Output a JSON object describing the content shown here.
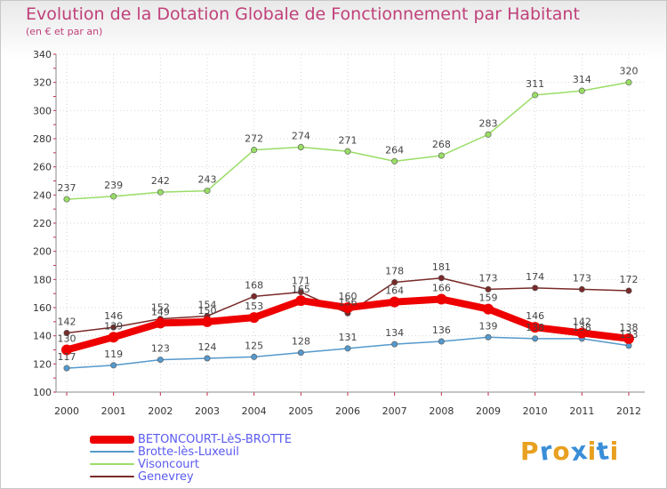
{
  "header": {
    "title": "Evolution de la Dotation Globale de Fonctionnement par Habitant",
    "subtitle": "(en € et par an)"
  },
  "logo": {
    "text": "Proxiti",
    "colors": [
      "#e8a020",
      "#3a8ed8",
      "#e8a020",
      "#3a8ed8",
      "#e8a020",
      "#3a8ed8",
      "#e8a020"
    ]
  },
  "chart_data": {
    "type": "line",
    "x": [
      "2000",
      "2001",
      "2002",
      "2003",
      "2004",
      "2005",
      "2006",
      "2007",
      "2008",
      "2009",
      "2010",
      "2011",
      "2012"
    ],
    "ylim": [
      100,
      340
    ],
    "yticks": [
      100,
      120,
      140,
      160,
      180,
      200,
      220,
      240,
      260,
      280,
      300,
      320,
      340
    ],
    "grid": true,
    "legend_position": "bottom-left",
    "series": [
      {
        "name": "BETONCOURT-LèS-BROTTE",
        "color": "#ee0000",
        "values": [
          130,
          139,
          149,
          150,
          153,
          165,
          160,
          164,
          166,
          159,
          146,
          142,
          138
        ],
        "labels": [
          "130",
          "139",
          "149",
          "150",
          "153",
          "165",
          "160",
          "164",
          "166",
          "159",
          "146",
          "142",
          "138"
        ]
      },
      {
        "name": "Brotte-lès-Luxeuil",
        "color": "#5599cc",
        "values": [
          117,
          119,
          123,
          124,
          125,
          128,
          131,
          134,
          136,
          139,
          138,
          138,
          133
        ],
        "labels": [
          "117",
          "119",
          "123",
          "124",
          "125",
          "128",
          "131",
          "134",
          "136",
          "139",
          "138",
          "138",
          "133"
        ]
      },
      {
        "name": "Visoncourt",
        "color": "#99dd66",
        "values": [
          237,
          239,
          242,
          243,
          272,
          274,
          271,
          264,
          268,
          283,
          311,
          314,
          320
        ],
        "labels": [
          "237",
          "239",
          "242",
          "243",
          "272",
          "274",
          "271",
          "264",
          "268",
          "283",
          "311",
          "314",
          "320"
        ]
      },
      {
        "name": "Genevrey",
        "color": "#7a2a2a",
        "values": [
          142,
          146,
          152,
          154,
          168,
          171,
          156,
          178,
          181,
          173,
          174,
          173,
          172
        ],
        "labels": [
          "142",
          "146",
          "152",
          "154",
          "168",
          "171",
          "156",
          "178",
          "181",
          "173",
          "174",
          "173",
          "172"
        ]
      }
    ]
  }
}
